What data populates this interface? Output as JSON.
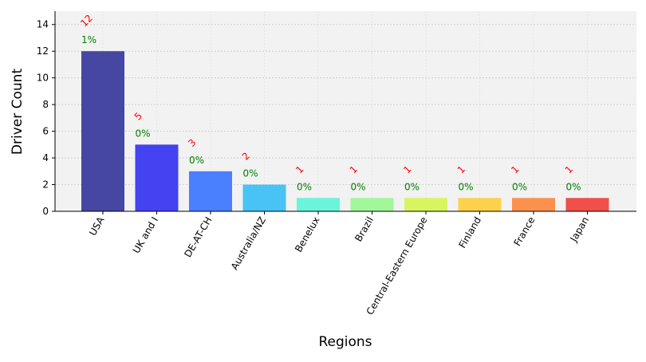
{
  "chart_data": {
    "type": "bar",
    "xlabel": "Regions",
    "ylabel": "Driver Count",
    "ylim": [
      0,
      15
    ],
    "yticks": [
      0,
      2,
      4,
      6,
      8,
      10,
      12,
      14
    ],
    "grid": true,
    "categories": [
      "USA",
      "UK and I",
      "DE-AT-CH",
      "Australia/NZ",
      "Benelux",
      "Brazil",
      "Central-Eastern Europe",
      "Finland",
      "France",
      "Japan"
    ],
    "values": [
      12,
      5,
      3,
      2,
      1,
      1,
      1,
      1,
      1,
      1
    ],
    "count_labels": [
      "12",
      "5",
      "3",
      "2",
      "1",
      "1",
      "1",
      "1",
      "1",
      "1"
    ],
    "percent_labels": [
      "1%",
      "0%",
      "0%",
      "0%",
      "0%",
      "0%",
      "0%",
      "0%",
      "0%",
      "0%"
    ],
    "colors": [
      "#4646a3",
      "#4343f2",
      "#4a7ffd",
      "#49c3f6",
      "#69f5dc",
      "#a1f799",
      "#d8f55f",
      "#fdd14b",
      "#fb914c",
      "#f05049"
    ],
    "count_label_color": "#ff0000",
    "percent_label_color": "#008000"
  }
}
